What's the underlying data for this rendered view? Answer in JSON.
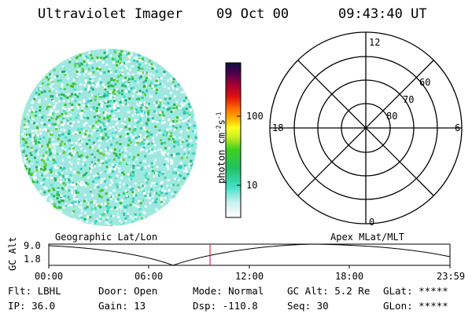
{
  "header": {
    "instrument": "Ultraviolet Imager",
    "date": "09 Oct 00",
    "time": "09:43:40 UT"
  },
  "colorbar": {
    "unit_label": "photon cm",
    "unit_sup1": "-2",
    "unit_mid": "s",
    "unit_sup2": "-1",
    "tick_100": "100",
    "tick_10": "10"
  },
  "polar": {
    "mlt_top": "12",
    "mlt_left": "18",
    "mlt_right": "6",
    "mlt_bottom": "0",
    "lat_60": "60",
    "lat_70": "70",
    "lat_80": "80"
  },
  "orbit": {
    "left_caption": "Geographic Lat/Lon",
    "right_caption": "Apex MLat/MLT",
    "axis_label": "GC Alt",
    "y_max": "9.0",
    "y_min": "1.8",
    "time_ticks": [
      "00:00",
      "06:00",
      "12:00",
      "18:00",
      "23:59"
    ]
  },
  "info": {
    "row1": [
      "Flt: LBHL",
      "Door: Open",
      "Mode: Normal",
      "GC Alt: 5.2 Re",
      "GLat: *****"
    ],
    "row2": [
      "IP: 36.0",
      "Gain: 13",
      "Dsp: -110.8",
      "Seq: 30",
      "GLon: *****"
    ]
  },
  "colors": {
    "cursor": "#d03050",
    "low": "#ffffff",
    "mid": "#40e0c8",
    "high": "#40c020"
  }
}
